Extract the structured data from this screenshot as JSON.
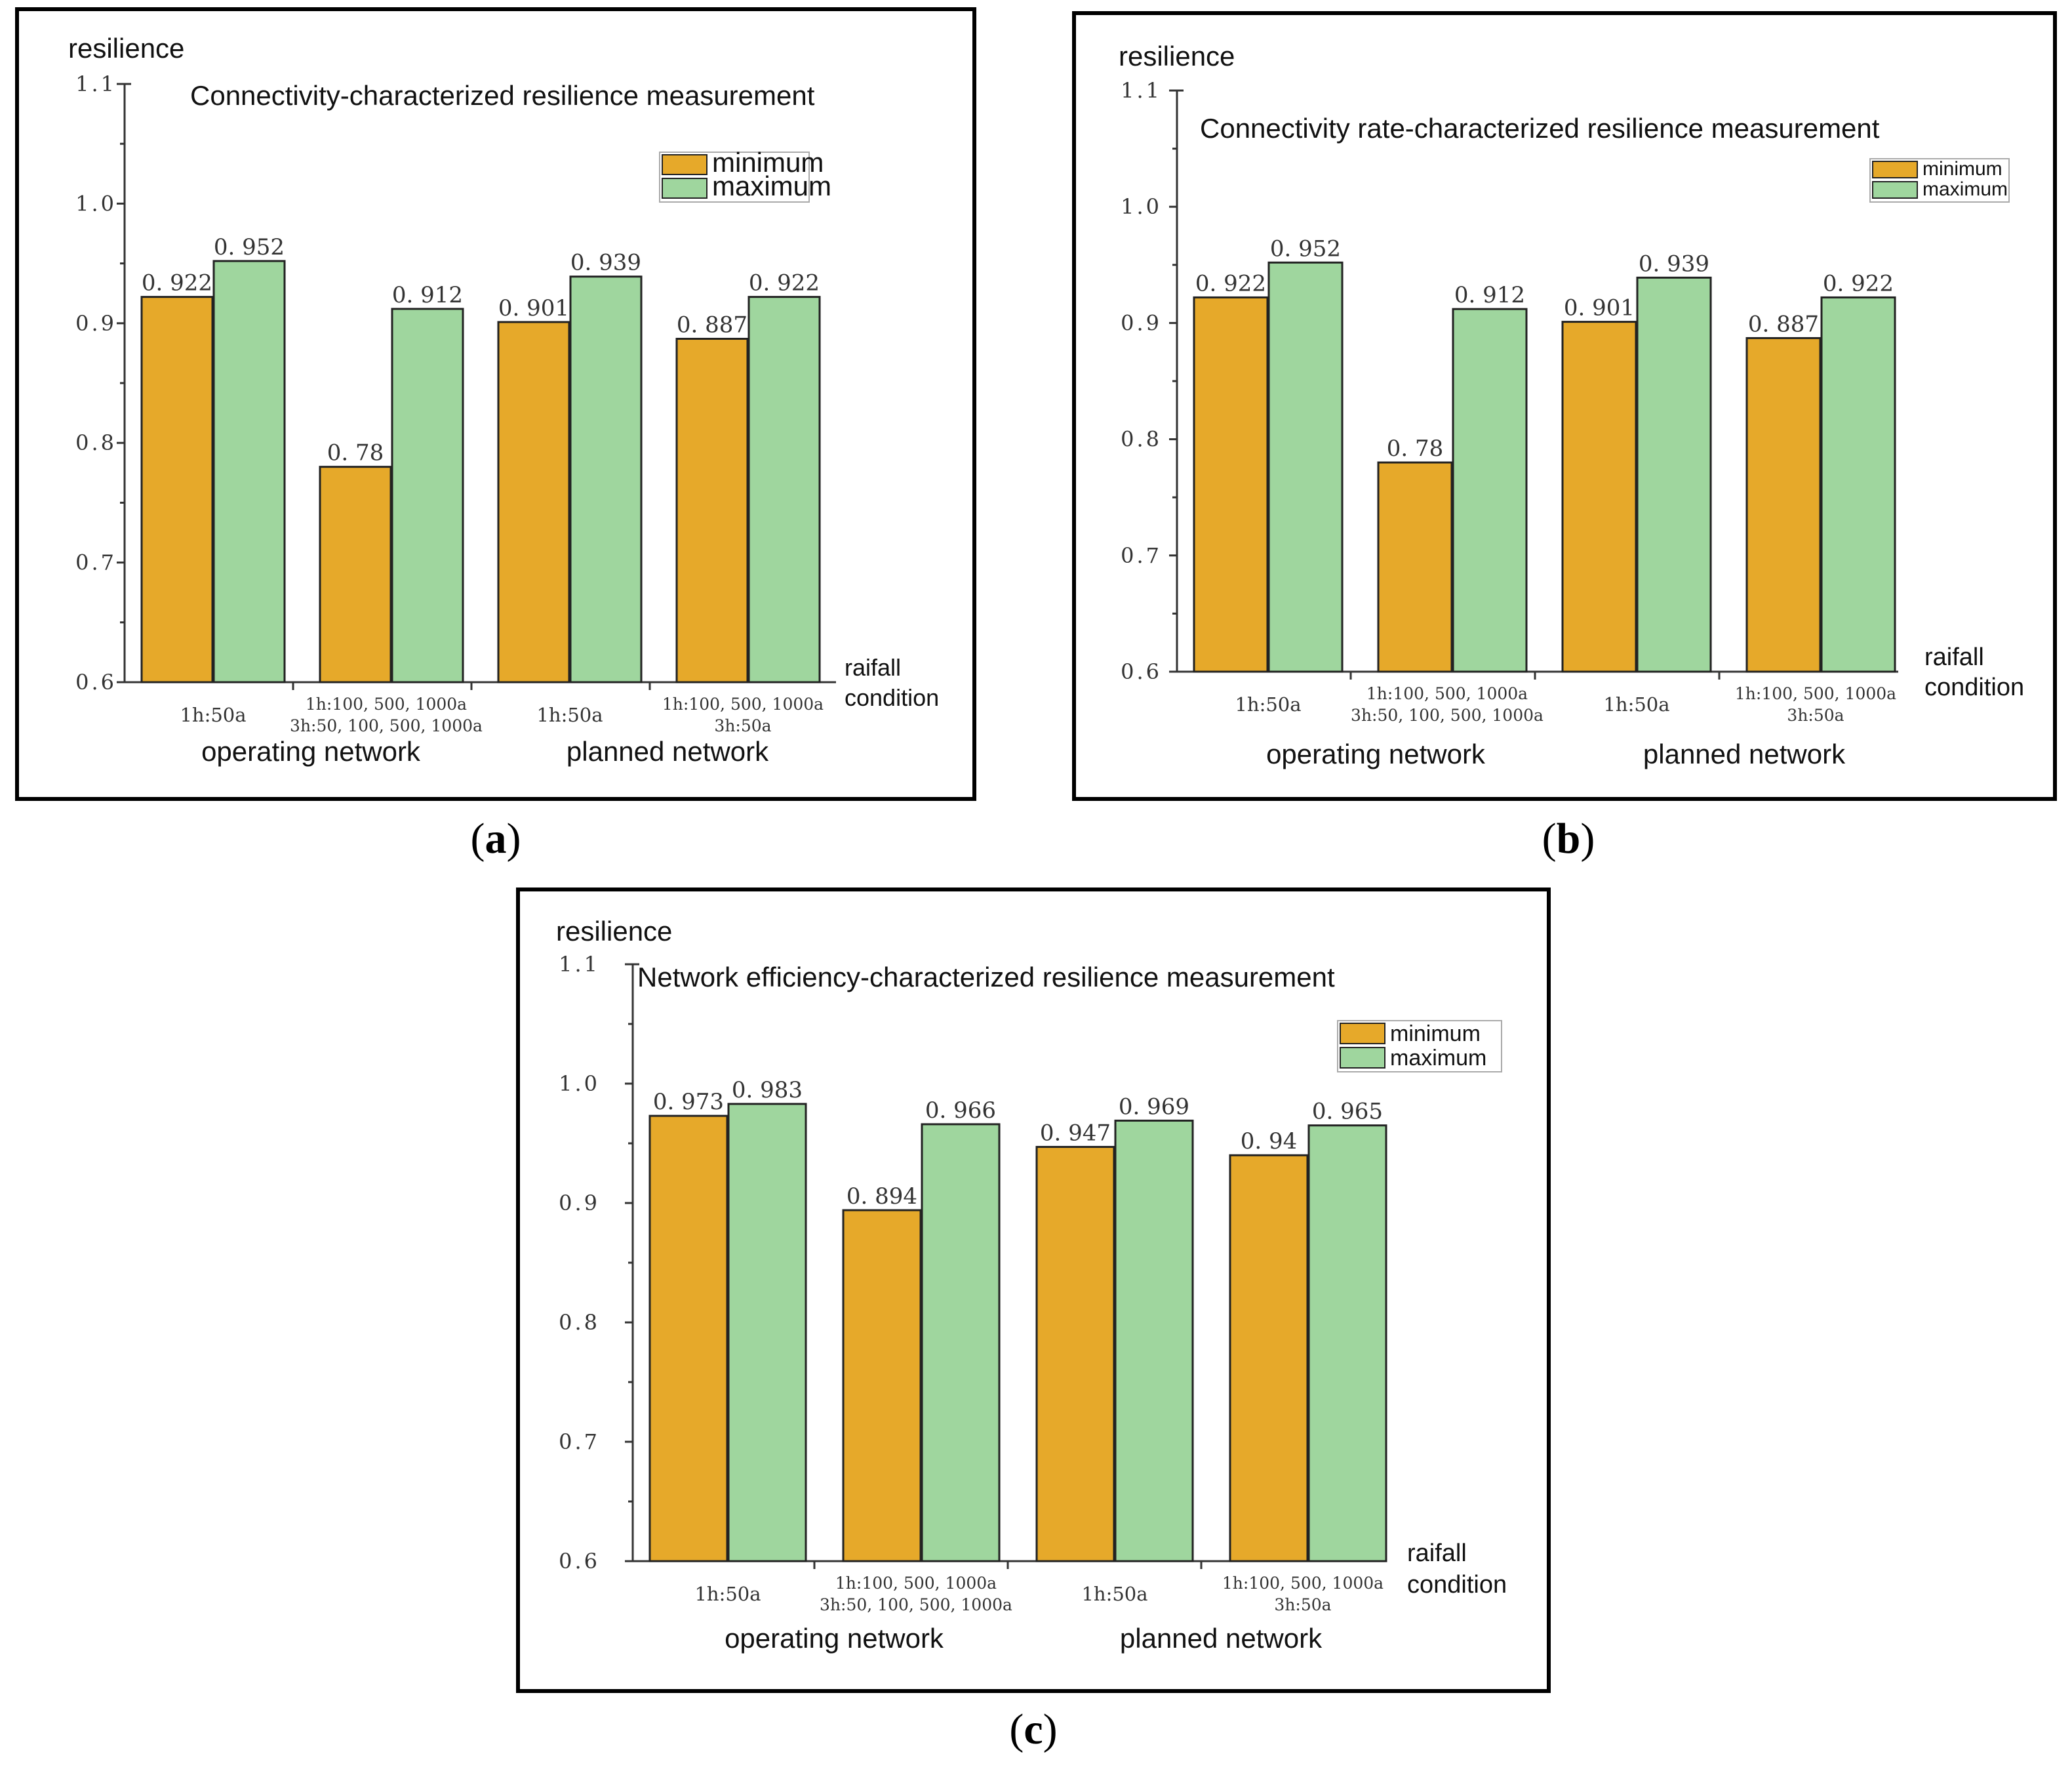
{
  "series_names": [
    "minimum",
    "maximum"
  ],
  "colors": {
    "minimum": "#E6A92A",
    "maximum": "#9FD69E",
    "axis": "#333333",
    "frame": "#000000"
  },
  "chart_data": [
    {
      "type": "bar",
      "panel": "(a)",
      "title": "Connectivity-characterized resilience measurement",
      "ylabel": "resilience",
      "xlabel": [
        "raifall",
        "condition"
      ],
      "ylim": [
        0.6,
        1.1
      ],
      "yticks": [
        "0.6",
        "0.7",
        "0.8",
        "0.9",
        "1.0",
        "1.1"
      ],
      "categories": [
        [
          "1h:50a"
        ],
        [
          "1h:100, 500, 1000a",
          "3h:50, 100, 500, 1000a"
        ],
        [
          "1h:50a"
        ],
        [
          "1h:100, 500, 1000a",
          "3h:50a"
        ]
      ],
      "groups": [
        "operating network",
        "planned network"
      ],
      "series": [
        {
          "name": "minimum",
          "values": [
            0.922,
            0.78,
            0.901,
            0.887
          ],
          "labels": [
            "0. 922",
            "0. 78",
            "0. 901",
            "0. 887"
          ]
        },
        {
          "name": "maximum",
          "values": [
            0.952,
            0.912,
            0.939,
            0.922
          ],
          "labels": [
            "0. 952",
            "0. 912",
            "0. 939",
            "0. 922"
          ]
        }
      ]
    },
    {
      "type": "bar",
      "panel": "(b)",
      "title": "Connectivity rate-characterized resilience measurement",
      "ylabel": "resilience",
      "xlabel": [
        "raifall",
        "condition"
      ],
      "ylim": [
        0.6,
        1.1
      ],
      "yticks": [
        "0.6",
        "0.7",
        "0.8",
        "0.9",
        "1.0",
        "1.1"
      ],
      "categories": [
        [
          "1h:50a"
        ],
        [
          "1h:100, 500, 1000a",
          "3h:50, 100, 500, 1000a"
        ],
        [
          "1h:50a"
        ],
        [
          "1h:100, 500, 1000a",
          "3h:50a"
        ]
      ],
      "groups": [
        "operating network",
        "planned network"
      ],
      "series": [
        {
          "name": "minimum",
          "values": [
            0.922,
            0.78,
            0.901,
            0.887
          ],
          "labels": [
            "0. 922",
            "0. 78",
            "0. 901",
            "0. 887"
          ]
        },
        {
          "name": "maximum",
          "values": [
            0.952,
            0.912,
            0.939,
            0.922
          ],
          "labels": [
            "0. 952",
            "0. 912",
            "0. 939",
            "0. 922"
          ]
        }
      ]
    },
    {
      "type": "bar",
      "panel": "(c)",
      "title": "Network efficiency-characterized resilience measurement",
      "ylabel": "resilience",
      "xlabel": [
        "raifall",
        "condition"
      ],
      "ylim": [
        0.6,
        1.1
      ],
      "yticks": [
        "0.6",
        "0.7",
        "0.8",
        "0.9",
        "1.0",
        "1.1"
      ],
      "categories": [
        [
          "1h:50a"
        ],
        [
          "1h:100, 500, 1000a",
          "3h:50, 100, 500, 1000a"
        ],
        [
          "1h:50a"
        ],
        [
          "1h:100, 500, 1000a",
          "3h:50a"
        ]
      ],
      "groups": [
        "operating network",
        "planned network"
      ],
      "series": [
        {
          "name": "minimum",
          "values": [
            0.973,
            0.894,
            0.947,
            0.94
          ],
          "labels": [
            "0. 973",
            "0. 894",
            "0. 947",
            "0. 94"
          ]
        },
        {
          "name": "maximum",
          "values": [
            0.983,
            0.966,
            0.969,
            0.965
          ],
          "labels": [
            "0. 983",
            "0. 966",
            "0. 969",
            "0. 965"
          ]
        }
      ]
    }
  ]
}
